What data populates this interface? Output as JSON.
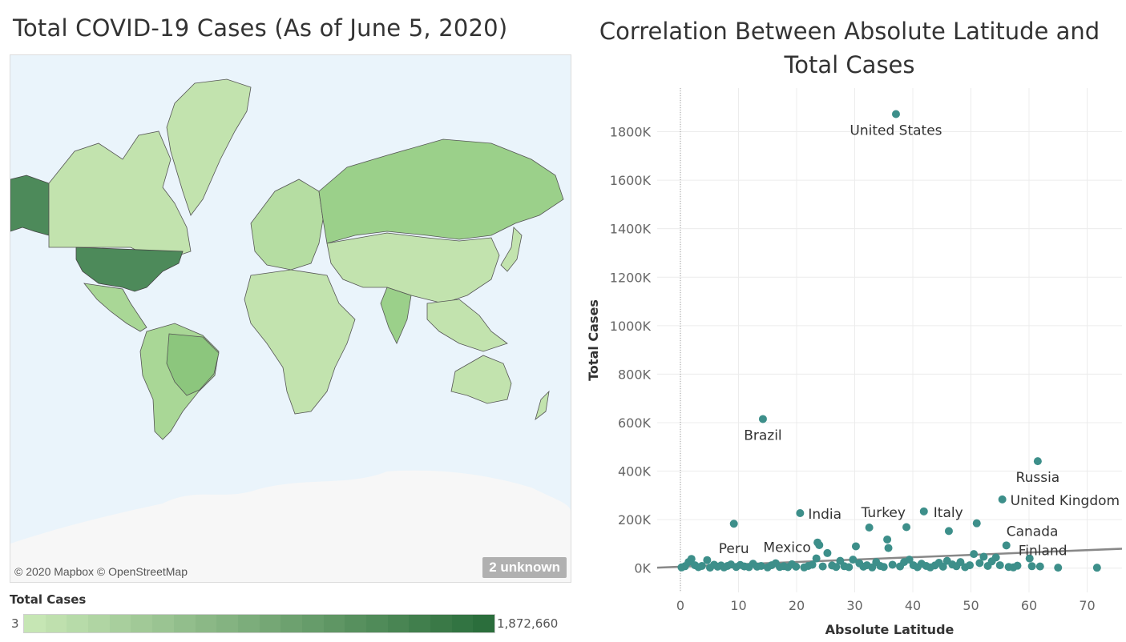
{
  "map": {
    "title": "Total COVID-19 Cases (As of June 5, 2020)",
    "attribution": "© 2020 Mapbox © OpenStreetMap",
    "unknown_badge": "2 unknown",
    "ocean_color": "#eaf4fb",
    "legend": {
      "title": "Total Cases",
      "min_label": "3",
      "max_label": "1,872,660",
      "color_low": "#c6e6b4",
      "color_high": "#2b6e3c"
    }
  },
  "chart_data": {
    "type": "scatter",
    "title": "Correlation Between Absolute Latitude and Total Cases",
    "xlabel": "Absolute Latitude",
    "ylabel": "Total Cases",
    "xlim": [
      -4,
      76
    ],
    "ylim": [
      -100000,
      1980000
    ],
    "xticks": [
      0,
      10,
      20,
      30,
      40,
      50,
      60,
      70
    ],
    "yticks": [
      0,
      200000,
      400000,
      600000,
      800000,
      1000000,
      1200000,
      1400000,
      1600000,
      1800000
    ],
    "ytick_labels": [
      "0K",
      "200K",
      "400K",
      "600K",
      "800K",
      "1000K",
      "1200K",
      "1400K",
      "1600K",
      "1800K"
    ],
    "grid": true,
    "point_color": "#3d8f8a",
    "trendline": {
      "color": "#888888",
      "x": [
        -4,
        76
      ],
      "y": [
        2000,
        80000
      ]
    },
    "labeled_points": [
      {
        "name": "United States",
        "x": 37.1,
        "y": 1872660
      },
      {
        "name": "Brazil",
        "x": 14.2,
        "y": 614941
      },
      {
        "name": "Russia",
        "x": 61.5,
        "y": 441108
      },
      {
        "name": "United Kingdom",
        "x": 55.4,
        "y": 283311
      },
      {
        "name": "Italy",
        "x": 41.9,
        "y": 234013
      },
      {
        "name": "India",
        "x": 20.6,
        "y": 226770
      },
      {
        "name": "Turkey",
        "x": 32.5,
        "y": 167410
      },
      {
        "name": "Peru",
        "x": 9.2,
        "y": 183198
      },
      {
        "name": "Canada",
        "x": 56.1,
        "y": 93726
      },
      {
        "name": "Mexico",
        "x": 23.6,
        "y": 105680
      },
      {
        "name": "Finland",
        "x": 61.9,
        "y": 6911
      }
    ],
    "points": [
      {
        "x": 0.2,
        "y": 3000
      },
      {
        "x": 0.8,
        "y": 8000
      },
      {
        "x": 1.4,
        "y": 25000
      },
      {
        "x": 1.9,
        "y": 38000
      },
      {
        "x": 2.5,
        "y": 12000
      },
      {
        "x": 3.1,
        "y": 4000
      },
      {
        "x": 3.7,
        "y": 9000
      },
      {
        "x": 4.6,
        "y": 33000
      },
      {
        "x": 5.1,
        "y": 2000
      },
      {
        "x": 5.8,
        "y": 14000
      },
      {
        "x": 6.4,
        "y": 6000
      },
      {
        "x": 7.0,
        "y": 11000
      },
      {
        "x": 7.5,
        "y": 3000
      },
      {
        "x": 8.1,
        "y": 9000
      },
      {
        "x": 8.7,
        "y": 15000
      },
      {
        "x": 9.6,
        "y": 5000
      },
      {
        "x": 10.3,
        "y": 13000
      },
      {
        "x": 11.0,
        "y": 7000
      },
      {
        "x": 11.8,
        "y": 4000
      },
      {
        "x": 12.5,
        "y": 18000
      },
      {
        "x": 13.2,
        "y": 6000
      },
      {
        "x": 13.9,
        "y": 9000
      },
      {
        "x": 15.0,
        "y": 3000
      },
      {
        "x": 15.7,
        "y": 12000
      },
      {
        "x": 16.4,
        "y": 20000
      },
      {
        "x": 17.1,
        "y": 5000
      },
      {
        "x": 17.8,
        "y": 8000
      },
      {
        "x": 18.5,
        "y": 4000
      },
      {
        "x": 19.2,
        "y": 16000
      },
      {
        "x": 19.9,
        "y": 6000
      },
      {
        "x": 21.3,
        "y": 3000
      },
      {
        "x": 22.0,
        "y": 9000
      },
      {
        "x": 22.7,
        "y": 14000
      },
      {
        "x": 23.4,
        "y": 40000
      },
      {
        "x": 23.9,
        "y": 95000
      },
      {
        "x": 24.5,
        "y": 7000
      },
      {
        "x": 25.3,
        "y": 62000
      },
      {
        "x": 26.1,
        "y": 11000
      },
      {
        "x": 26.8,
        "y": 5000
      },
      {
        "x": 27.5,
        "y": 30000
      },
      {
        "x": 28.2,
        "y": 8000
      },
      {
        "x": 29.0,
        "y": 4000
      },
      {
        "x": 29.7,
        "y": 35000
      },
      {
        "x": 30.2,
        "y": 90000
      },
      {
        "x": 30.8,
        "y": 20000
      },
      {
        "x": 31.5,
        "y": 6000
      },
      {
        "x": 32.1,
        "y": 12000
      },
      {
        "x": 33.0,
        "y": 3000
      },
      {
        "x": 33.7,
        "y": 25000
      },
      {
        "x": 34.4,
        "y": 9000
      },
      {
        "x": 35.0,
        "y": 5000
      },
      {
        "x": 35.6,
        "y": 118000
      },
      {
        "x": 35.8,
        "y": 83000
      },
      {
        "x": 36.5,
        "y": 14000
      },
      {
        "x": 37.8,
        "y": 7000
      },
      {
        "x": 38.5,
        "y": 25000
      },
      {
        "x": 38.9,
        "y": 169000
      },
      {
        "x": 39.4,
        "y": 35000
      },
      {
        "x": 40.1,
        "y": 12000
      },
      {
        "x": 40.8,
        "y": 4000
      },
      {
        "x": 41.5,
        "y": 18000
      },
      {
        "x": 42.3,
        "y": 9000
      },
      {
        "x": 43.0,
        "y": 3000
      },
      {
        "x": 43.8,
        "y": 11000
      },
      {
        "x": 44.5,
        "y": 22000
      },
      {
        "x": 45.2,
        "y": 6000
      },
      {
        "x": 45.9,
        "y": 30000
      },
      {
        "x": 46.2,
        "y": 153000
      },
      {
        "x": 46.8,
        "y": 15000
      },
      {
        "x": 47.5,
        "y": 8000
      },
      {
        "x": 48.2,
        "y": 25000
      },
      {
        "x": 49.0,
        "y": 4000
      },
      {
        "x": 49.8,
        "y": 12000
      },
      {
        "x": 50.5,
        "y": 58000
      },
      {
        "x": 51.0,
        "y": 185000
      },
      {
        "x": 51.5,
        "y": 21000
      },
      {
        "x": 52.2,
        "y": 47000
      },
      {
        "x": 52.9,
        "y": 9000
      },
      {
        "x": 53.6,
        "y": 28000
      },
      {
        "x": 54.3,
        "y": 44000
      },
      {
        "x": 55.0,
        "y": 12000
      },
      {
        "x": 56.5,
        "y": 5000
      },
      {
        "x": 57.3,
        "y": 3000
      },
      {
        "x": 58.0,
        "y": 10000
      },
      {
        "x": 60.1,
        "y": 40000
      },
      {
        "x": 60.5,
        "y": 8000
      },
      {
        "x": 65.0,
        "y": 2000
      },
      {
        "x": 71.7,
        "y": 1800
      }
    ]
  }
}
